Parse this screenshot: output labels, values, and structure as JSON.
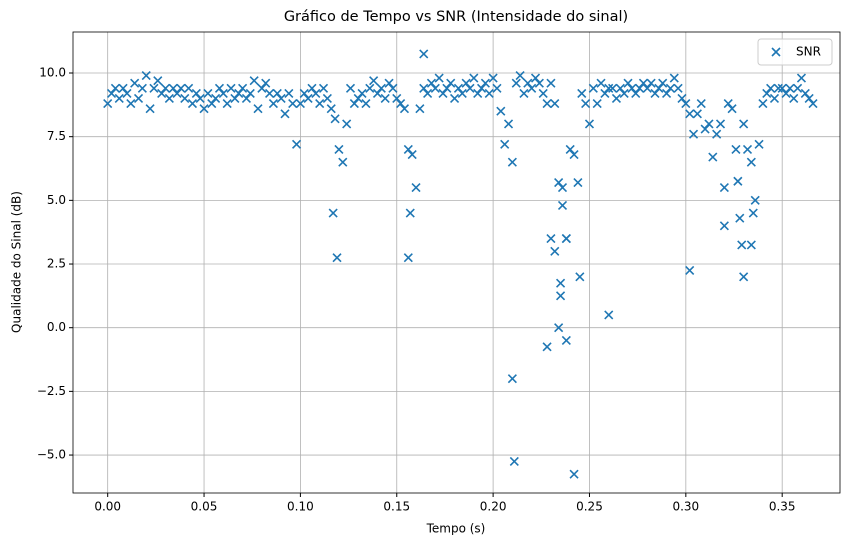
{
  "chart_data": {
    "type": "scatter",
    "title": "Gráfico de Tempo vs SNR (Intensidade do sinal)",
    "x_label": "Tempo (s)",
    "y_label": "Qualidade do Sinal (dB)",
    "xlim": [
      -0.018,
      0.38
    ],
    "ylim": [
      -6.49,
      11.61
    ],
    "xticks": [
      {
        "value": 0,
        "label": "0.00"
      },
      {
        "value": 0.05,
        "label": "0.05"
      },
      {
        "value": 0.1,
        "label": "0.10"
      },
      {
        "value": 0.15,
        "label": "0.15"
      },
      {
        "value": 0.2,
        "label": "0.20"
      },
      {
        "value": 0.25,
        "label": "0.25"
      },
      {
        "value": 0.3,
        "label": "0.30"
      },
      {
        "value": 0.35,
        "label": "0.35"
      }
    ],
    "yticks": [
      {
        "value": -5,
        "label": "−5.0"
      },
      {
        "value": -2.5,
        "label": "−2.5"
      },
      {
        "value": 0,
        "label": "0.0"
      },
      {
        "value": 2.5,
        "label": "2.5"
      },
      {
        "value": 5,
        "label": "5.0"
      },
      {
        "value": 7.5,
        "label": "7.5"
      },
      {
        "value": 10,
        "label": "10.0"
      }
    ],
    "grid": true,
    "legend": "upper right",
    "x": [
      0,
      0.002,
      0.004,
      0.006,
      0.008,
      0.01,
      0.012,
      0.014,
      0.016,
      0.018,
      0.02,
      0.022,
      0.024,
      0.026,
      0.028,
      0.03,
      0.032,
      0.034,
      0.036,
      0.038,
      0.04,
      0.042,
      0.044,
      0.046,
      0.048,
      0.05,
      0.052,
      0.054,
      0.056,
      0.058,
      0.06,
      0.062,
      0.064,
      0.066,
      0.068,
      0.07,
      0.072,
      0.074,
      0.076,
      0.078,
      0.08,
      0.082,
      0.084,
      0.086,
      0.088,
      0.09,
      0.092,
      0.094,
      0.096,
      0.098,
      0.1,
      0.102,
      0.104,
      0.106,
      0.108,
      0.11,
      0.112,
      0.114,
      0.116,
      0.118,
      0.12,
      0.122,
      0.124,
      0.126,
      0.128,
      0.13,
      0.132,
      0.134,
      0.136,
      0.138,
      0.14,
      0.142,
      0.144,
      0.146,
      0.148,
      0.15,
      0.152,
      0.154,
      0.156,
      0.158,
      0.16,
      0.162,
      0.164,
      0.166,
      0.168,
      0.17,
      0.172,
      0.174,
      0.176,
      0.178,
      0.18,
      0.182,
      0.184,
      0.186,
      0.188,
      0.19,
      0.192,
      0.194,
      0.196,
      0.198,
      0.2,
      0.202,
      0.204,
      0.206,
      0.208,
      0.21,
      0.212,
      0.214,
      0.216,
      0.218,
      0.22,
      0.222,
      0.224,
      0.226,
      0.228,
      0.23,
      0.232,
      0.234,
      0.236,
      0.238,
      0.24,
      0.242,
      0.244,
      0.246,
      0.248,
      0.25,
      0.252,
      0.254,
      0.256,
      0.258,
      0.26,
      0.262,
      0.264,
      0.266,
      0.268,
      0.27,
      0.272,
      0.274,
      0.276,
      0.278,
      0.28,
      0.282,
      0.284,
      0.286,
      0.288,
      0.29,
      0.292,
      0.294,
      0.296,
      0.298,
      0.3,
      0.302,
      0.304,
      0.306,
      0.308,
      0.31,
      0.312,
      0.314,
      0.316,
      0.318,
      0.32,
      0.322,
      0.324,
      0.326,
      0.328,
      0.33,
      0.332,
      0.334,
      0.336,
      0.338,
      0.34,
      0.342,
      0.344,
      0.346,
      0.348,
      0.35,
      0.352,
      0.354,
      0.356,
      0.358,
      0.36,
      0.362,
      0.364,
      0.366,
      0.117,
      0.119,
      0.157,
      0.156,
      0.164,
      0.21,
      0.211,
      0.228,
      0.234,
      0.235,
      0.235,
      0.238,
      0.238,
      0.242,
      0.245,
      0.26,
      0.302,
      0.33,
      0.329,
      0.334,
      0.32,
      0.327,
      0.23,
      0.232,
      0.236,
      0.335
    ],
    "series": [
      {
        "name": "SNR",
        "color": "#1f77b4",
        "values": [
          8.8,
          9.2,
          9.4,
          9.0,
          9.4,
          9.2,
          8.8,
          9.6,
          9.0,
          9.4,
          9.9,
          8.6,
          9.4,
          9.7,
          9.2,
          9.4,
          9.0,
          9.4,
          9.2,
          9.4,
          9.0,
          9.4,
          8.8,
          9.2,
          9.0,
          8.6,
          9.2,
          8.8,
          9.0,
          9.4,
          9.2,
          8.8,
          9.4,
          9.0,
          9.2,
          9.4,
          9.0,
          9.2,
          9.7,
          8.6,
          9.4,
          9.6,
          9.2,
          8.8,
          9.2,
          9.0,
          8.4,
          9.2,
          8.8,
          7.2,
          8.8,
          9.2,
          9.0,
          9.4,
          9.2,
          8.8,
          9.4,
          9.0,
          8.6,
          8.2,
          7.0,
          6.5,
          8.0,
          9.4,
          8.8,
          9.0,
          9.2,
          8.8,
          9.4,
          9.7,
          9.2,
          9.4,
          9.0,
          9.6,
          9.4,
          9.0,
          8.8,
          8.6,
          7.0,
          6.8,
          5.5,
          8.6,
          9.4,
          9.2,
          9.6,
          9.4,
          9.8,
          9.2,
          9.4,
          9.6,
          9.0,
          9.4,
          9.2,
          9.6,
          9.4,
          9.8,
          9.2,
          9.4,
          9.6,
          9.2,
          9.8,
          9.4,
          8.5,
          7.2,
          8.0,
          6.5,
          9.6,
          9.9,
          9.2,
          9.6,
          9.4,
          9.8,
          9.6,
          9.2,
          8.8,
          9.6,
          8.8,
          5.7,
          4.8,
          3.5,
          7.0,
          6.8,
          5.7,
          9.2,
          8.8,
          8.0,
          9.4,
          8.8,
          9.6,
          9.2,
          9.4,
          9.4,
          9.0,
          9.4,
          9.2,
          9.6,
          9.4,
          9.2,
          9.4,
          9.6,
          9.4,
          9.6,
          9.2,
          9.4,
          9.6,
          9.2,
          9.4,
          9.8,
          9.4,
          9.0,
          8.8,
          8.4,
          7.6,
          8.4,
          8.8,
          7.8,
          8.0,
          6.7,
          7.6,
          8.0,
          4.0,
          8.8,
          8.6,
          7.0,
          4.3,
          8.0,
          7.0,
          6.5,
          5.0,
          7.2,
          8.8,
          9.2,
          9.4,
          9.0,
          9.4,
          9.4,
          9.2,
          9.4,
          9.0,
          9.4,
          9.8,
          9.2,
          9.0,
          8.8,
          4.5,
          2.75,
          4.5,
          2.75,
          10.75,
          -2.0,
          -5.25,
          -0.75,
          0.0,
          1.25,
          1.75,
          -0.5,
          3.5,
          -5.75,
          2.0,
          0.5,
          2.25,
          2.0,
          3.25,
          3.25,
          5.5,
          5.75,
          3.5,
          3.0,
          5.5,
          4.5
        ]
      }
    ]
  }
}
